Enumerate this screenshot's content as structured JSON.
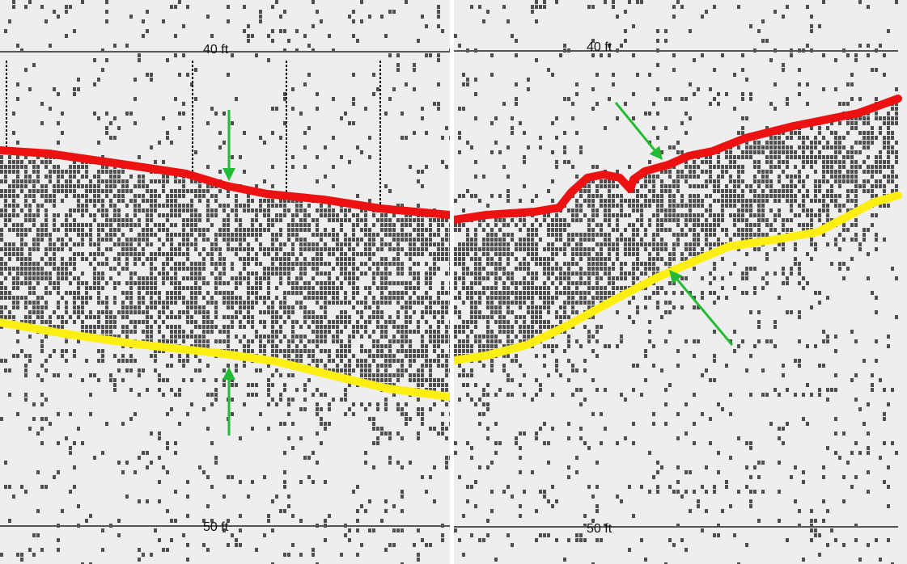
{
  "colors": {
    "background": "#eeeeee",
    "noise": "#333333",
    "depth_line": "#555555",
    "top_boundary": "#ee1111",
    "bottom_boundary": "#ffee11",
    "arrow": "#22bb33"
  },
  "panels": [
    {
      "id": "left",
      "depth_labels": {
        "upper": "40 ft",
        "lower": "50 ft"
      },
      "top_boundary": [
        [
          0,
          186
        ],
        [
          60,
          190
        ],
        [
          150,
          203
        ],
        [
          230,
          215
        ],
        [
          280,
          230
        ],
        [
          330,
          240
        ],
        [
          400,
          247
        ],
        [
          470,
          258
        ],
        [
          556,
          266
        ]
      ],
      "bottom_boundary": [
        [
          0,
          399
        ],
        [
          80,
          413
        ],
        [
          170,
          426
        ],
        [
          270,
          437
        ],
        [
          340,
          447
        ],
        [
          420,
          467
        ],
        [
          480,
          481
        ],
        [
          556,
          491
        ]
      ],
      "arrows": [
        {
          "name": "arrow-down-to-top-boundary",
          "from": [
            283,
            136
          ],
          "to": [
            283,
            224
          ]
        },
        {
          "name": "arrow-up-to-bottom-boundary",
          "from": [
            283,
            539
          ],
          "to": [
            283,
            454
          ]
        }
      ]
    },
    {
      "id": "right",
      "depth_labels": {
        "upper": "40 ft",
        "lower": "50 ft"
      },
      "top_boundary": [
        [
          0,
          272
        ],
        [
          40,
          266
        ],
        [
          100,
          262
        ],
        [
          130,
          257
        ],
        [
          145,
          238
        ],
        [
          165,
          220
        ],
        [
          185,
          216
        ],
        [
          205,
          220
        ],
        [
          218,
          234
        ],
        [
          222,
          222
        ],
        [
          236,
          212
        ],
        [
          250,
          208
        ],
        [
          265,
          204
        ],
        [
          290,
          193
        ],
        [
          320,
          187
        ],
        [
          360,
          171
        ],
        [
          420,
          156
        ],
        [
          500,
          140
        ],
        [
          549,
          122
        ]
      ],
      "bottom_boundary": [
        [
          0,
          446
        ],
        [
          40,
          440
        ],
        [
          90,
          427
        ],
        [
          140,
          403
        ],
        [
          200,
          370
        ],
        [
          250,
          344
        ],
        [
          300,
          322
        ],
        [
          340,
          305
        ],
        [
          400,
          296
        ],
        [
          450,
          287
        ],
        [
          490,
          266
        ],
        [
          520,
          250
        ],
        [
          549,
          242
        ]
      ],
      "arrows": [
        {
          "name": "arrow-to-top-boundary",
          "from": [
            200,
            127
          ],
          "to": [
            258,
            198
          ]
        },
        {
          "name": "arrow-to-bottom-boundary",
          "from": [
            344,
            427
          ],
          "to": [
            266,
            334
          ]
        }
      ]
    }
  ]
}
